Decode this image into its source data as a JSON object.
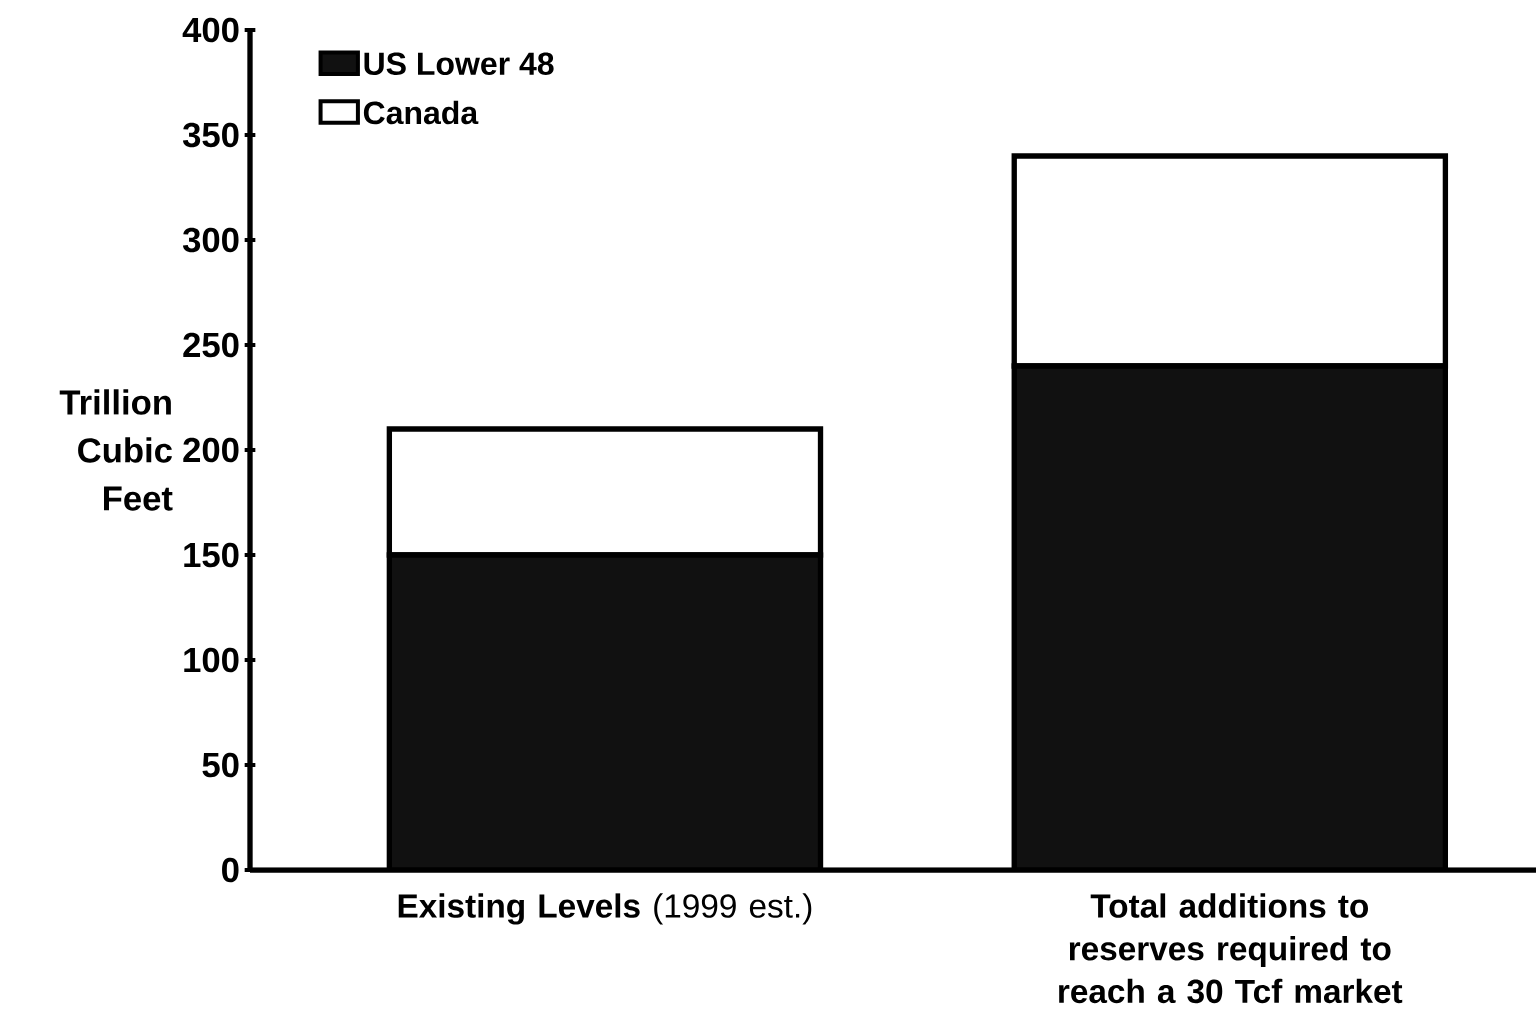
{
  "chart_data": {
    "type": "bar",
    "stacked": true,
    "categories": [
      "**Existing Levels** (1999 est.)",
      "Total additions to reserves required to reach a 30 Tcf market"
    ],
    "series": [
      {
        "name": "US Lower 48",
        "color": "#111111",
        "values": [
          150,
          240
        ]
      },
      {
        "name": "Canada",
        "color": "#ffffff",
        "values": [
          60,
          100
        ]
      }
    ],
    "ylabel": "Trillion Cubic Feet",
    "ylim": [
      0,
      400
    ],
    "yticks": [
      0,
      50,
      100,
      150,
      200,
      250,
      300,
      350,
      400
    ],
    "legend": "top left"
  }
}
